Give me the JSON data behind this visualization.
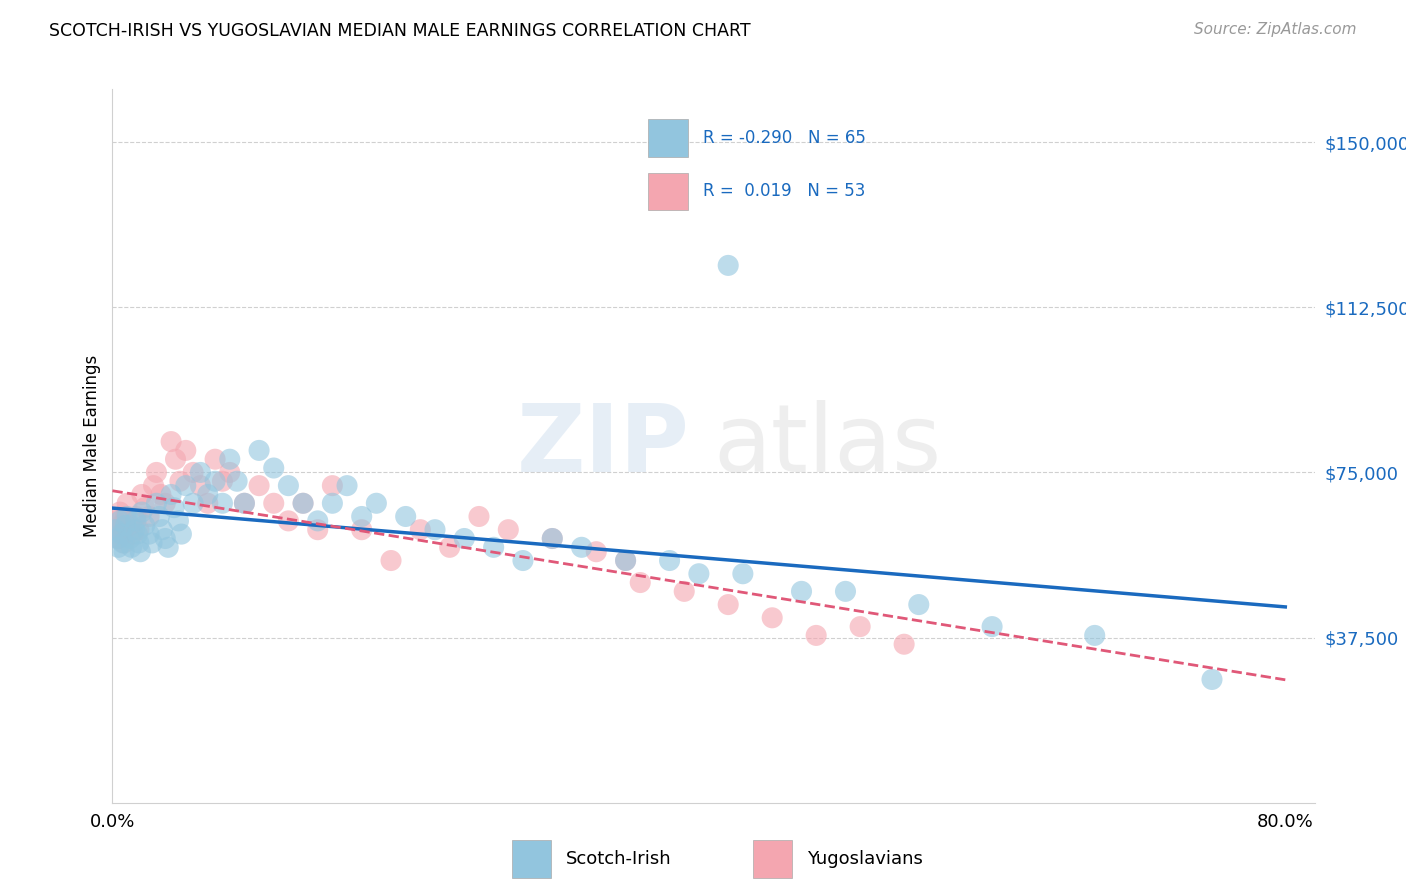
{
  "title": "SCOTCH-IRISH VS YUGOSLAVIAN MEDIAN MALE EARNINGS CORRELATION CHART",
  "source": "Source: ZipAtlas.com",
  "ylabel": "Median Male Earnings",
  "ytick_vals": [
    0,
    37500,
    75000,
    112500,
    150000
  ],
  "ytick_labels": [
    "",
    "$37,500",
    "$75,000",
    "$112,500",
    "$150,000"
  ],
  "xlim": [
    0.0,
    0.82
  ],
  "ylim": [
    0,
    162000
  ],
  "blue_fill": "#92c5de",
  "pink_fill": "#f4a6b0",
  "trend_blue": "#1a6abf",
  "trend_pink": "#e05878",
  "R_blue": -0.29,
  "N_blue": 65,
  "R_pink": 0.019,
  "N_pink": 53,
  "watermark_zip": "ZIP",
  "watermark_atlas": "atlas",
  "grid_color": "#d0d0d0",
  "title_fontsize": 12.5,
  "source_fontsize": 11,
  "tick_fontsize": 13,
  "ylabel_fontsize": 12,
  "blue_x": [
    0.002,
    0.003,
    0.004,
    0.005,
    0.006,
    0.007,
    0.008,
    0.009,
    0.01,
    0.012,
    0.013,
    0.015,
    0.016,
    0.017,
    0.018,
    0.019,
    0.02,
    0.022,
    0.025,
    0.027,
    0.03,
    0.032,
    0.034,
    0.036,
    0.038,
    0.04,
    0.042,
    0.045,
    0.047,
    0.05,
    0.055,
    0.06,
    0.065,
    0.07,
    0.075,
    0.08,
    0.085,
    0.09,
    0.1,
    0.11,
    0.12,
    0.13,
    0.14,
    0.15,
    0.16,
    0.17,
    0.18,
    0.2,
    0.22,
    0.24,
    0.26,
    0.28,
    0.3,
    0.32,
    0.35,
    0.38,
    0.4,
    0.43,
    0.47,
    0.5,
    0.42,
    0.55,
    0.6,
    0.67,
    0.75
  ],
  "blue_y": [
    62000,
    60000,
    58000,
    64000,
    61000,
    59000,
    57000,
    63000,
    65000,
    60000,
    58000,
    62000,
    64000,
    61000,
    59000,
    57000,
    66000,
    63000,
    61000,
    59000,
    68000,
    65000,
    62000,
    60000,
    58000,
    70000,
    67000,
    64000,
    61000,
    72000,
    68000,
    75000,
    70000,
    73000,
    68000,
    78000,
    73000,
    68000,
    80000,
    76000,
    72000,
    68000,
    64000,
    68000,
    72000,
    65000,
    68000,
    65000,
    62000,
    60000,
    58000,
    55000,
    60000,
    58000,
    55000,
    55000,
    52000,
    52000,
    48000,
    48000,
    122000,
    45000,
    40000,
    38000,
    28000
  ],
  "pink_x": [
    0.002,
    0.003,
    0.004,
    0.005,
    0.006,
    0.007,
    0.008,
    0.009,
    0.01,
    0.012,
    0.014,
    0.016,
    0.018,
    0.02,
    0.022,
    0.025,
    0.028,
    0.03,
    0.033,
    0.036,
    0.04,
    0.043,
    0.046,
    0.05,
    0.055,
    0.06,
    0.065,
    0.07,
    0.075,
    0.08,
    0.09,
    0.1,
    0.11,
    0.12,
    0.13,
    0.14,
    0.15,
    0.17,
    0.19,
    0.21,
    0.23,
    0.25,
    0.27,
    0.3,
    0.33,
    0.36,
    0.39,
    0.42,
    0.45,
    0.48,
    0.51,
    0.54,
    0.35
  ],
  "pink_y": [
    64000,
    62000,
    60000,
    66000,
    63000,
    61000,
    59000,
    65000,
    68000,
    63000,
    61000,
    65000,
    62000,
    70000,
    67000,
    65000,
    72000,
    75000,
    70000,
    68000,
    82000,
    78000,
    73000,
    80000,
    75000,
    72000,
    68000,
    78000,
    73000,
    75000,
    68000,
    72000,
    68000,
    64000,
    68000,
    62000,
    72000,
    62000,
    55000,
    62000,
    58000,
    65000,
    62000,
    60000,
    57000,
    50000,
    48000,
    45000,
    42000,
    38000,
    40000,
    36000,
    55000
  ]
}
